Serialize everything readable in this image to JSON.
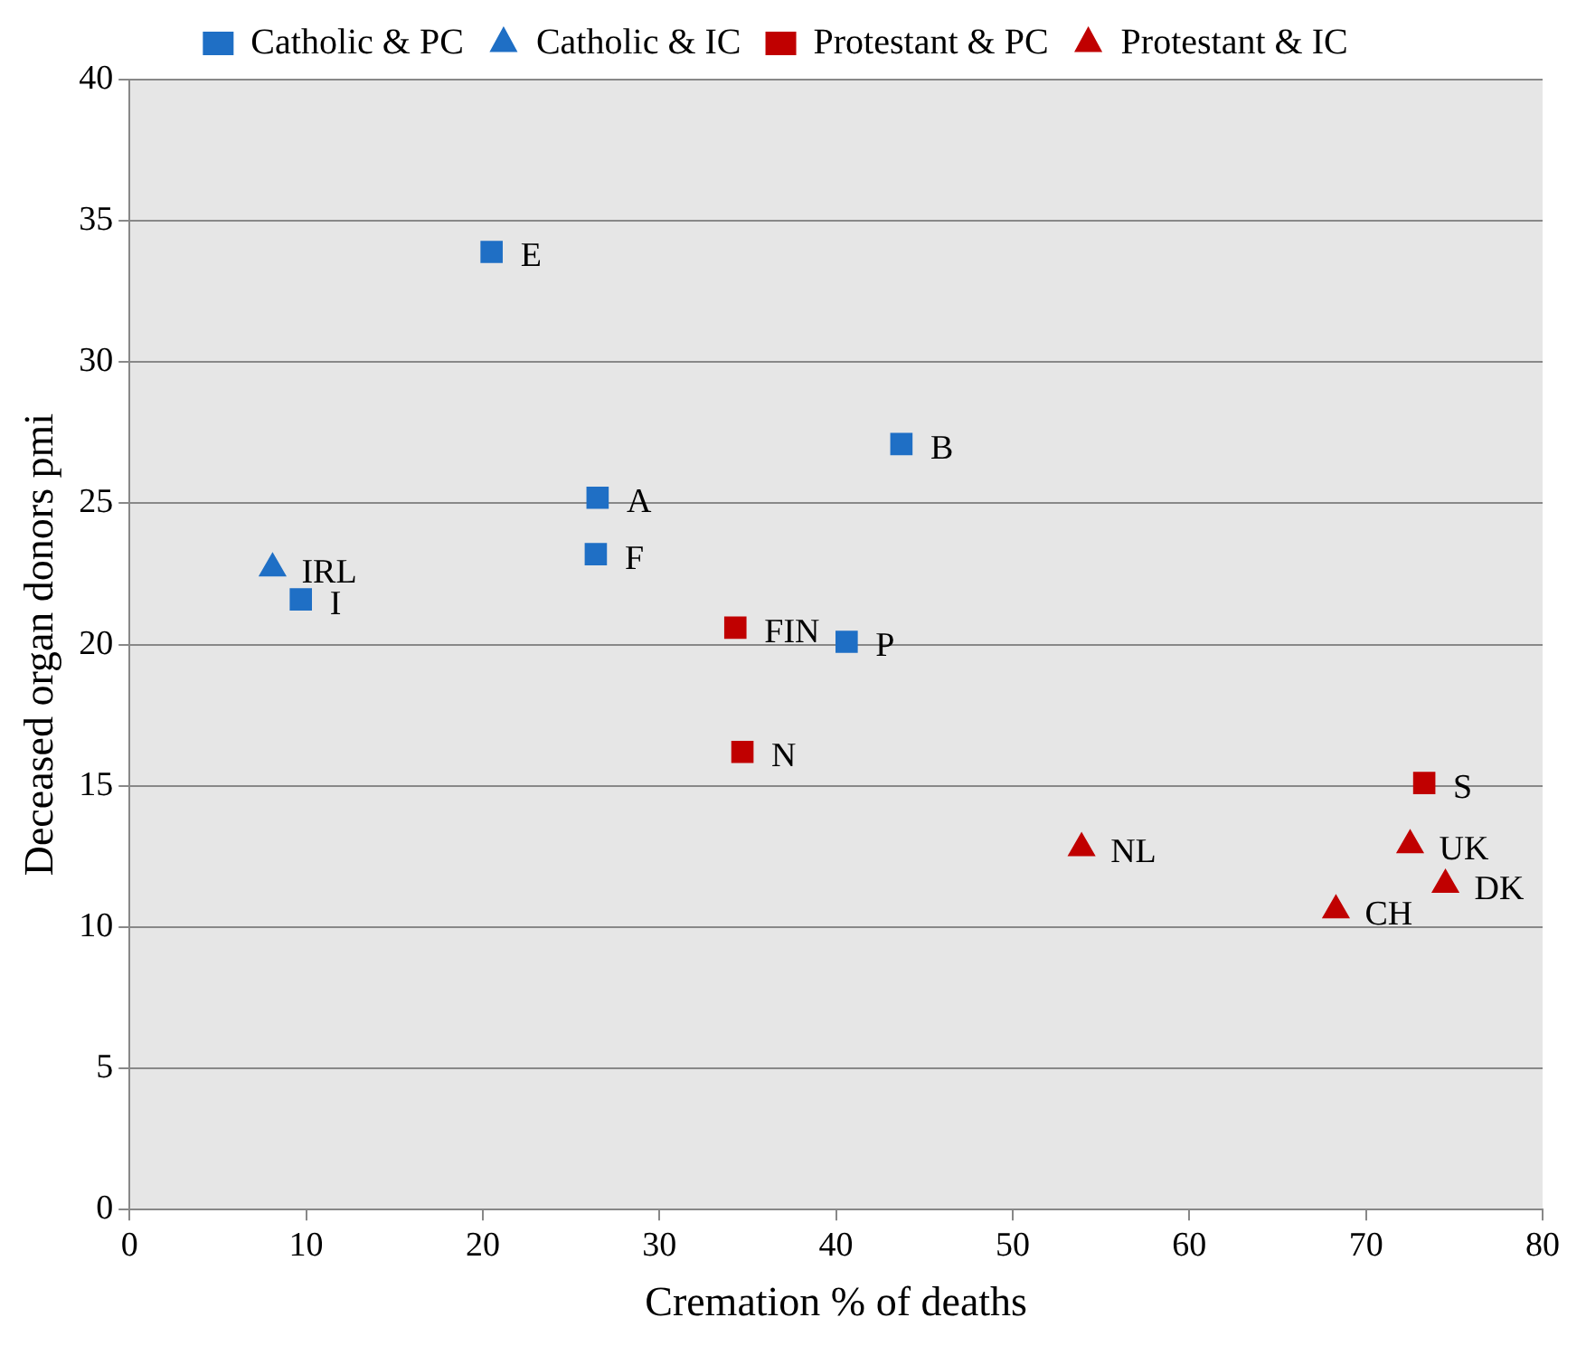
{
  "chart_data": {
    "type": "scatter",
    "xlabel": "Cremation % of deaths",
    "ylabel": "Deceased organ donors pmi",
    "series": [
      {
        "name": "Catholic & PC",
        "color": "#1f6fc5",
        "marker": "square",
        "x": [
          20.5,
          26.5,
          26.4,
          43.7,
          40.6,
          9.7
        ],
        "values": [
          33.9,
          25.2,
          23.2,
          27.1,
          20.1,
          21.6
        ]
      },
      {
        "name": "Catholic & IC",
        "color": "#1f6fc5",
        "marker": "triangle",
        "x": [
          8.1
        ],
        "values": [
          22.7
        ]
      },
      {
        "name": "Protestant & PC",
        "color": "#c00000",
        "marker": "square",
        "x": [
          34.3,
          34.7,
          73.3
        ],
        "values": [
          20.6,
          16.2,
          15.1
        ]
      },
      {
        "name": "Protestant & IC",
        "color": "#c00000",
        "marker": "triangle",
        "x": [
          53.9,
          72.5,
          74.5,
          68.3
        ],
        "values": [
          12.8,
          12.9,
          11.5,
          10.6
        ]
      }
    ],
    "annotations": [
      {
        "text": "E",
        "x": 20.5,
        "y": 33.9
      },
      {
        "text": "A",
        "x": 26.5,
        "y": 25.2
      },
      {
        "text": "F",
        "x": 26.4,
        "y": 23.2
      },
      {
        "text": "B",
        "x": 43.7,
        "y": 27.1
      },
      {
        "text": "P",
        "x": 40.6,
        "y": 20.1
      },
      {
        "text": "I",
        "x": 9.7,
        "y": 21.6
      },
      {
        "text": "IRL",
        "x": 8.1,
        "y": 22.7
      },
      {
        "text": "FIN",
        "x": 34.3,
        "y": 20.6
      },
      {
        "text": "N",
        "x": 34.7,
        "y": 16.2
      },
      {
        "text": "S",
        "x": 73.3,
        "y": 15.1
      },
      {
        "text": "NL",
        "x": 53.9,
        "y": 12.8
      },
      {
        "text": "UK",
        "x": 72.5,
        "y": 12.9
      },
      {
        "text": "DK",
        "x": 74.5,
        "y": 11.5
      },
      {
        "text": "CH",
        "x": 68.3,
        "y": 10.6
      }
    ],
    "xlim": [
      0,
      80
    ],
    "xticks": [
      0,
      10,
      20,
      30,
      40,
      50,
      60,
      70,
      80
    ],
    "ylim": [
      0,
      40
    ],
    "yticks": [
      0,
      5,
      10,
      15,
      20,
      25,
      30,
      35,
      40
    ],
    "grid": "y",
    "legend": "top"
  }
}
